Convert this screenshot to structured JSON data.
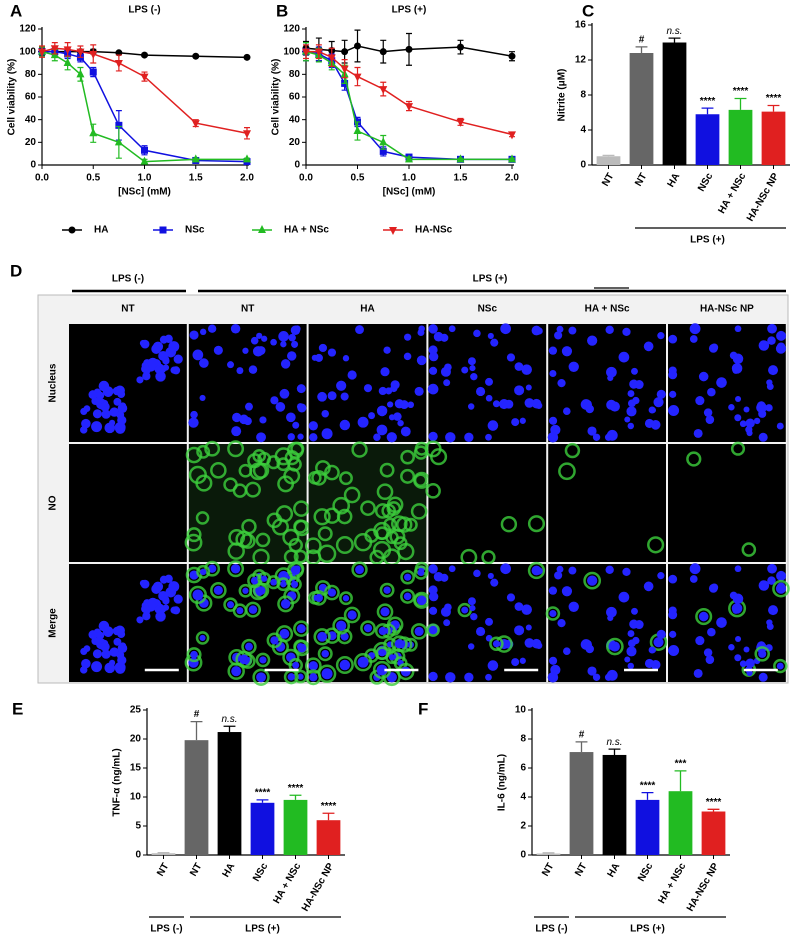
{
  "chart_data": [
    {
      "type": "line",
      "panel": "A",
      "title": "LPS (-)",
      "x_label": "[NSc] (mM)",
      "y_label": "Cell viability (%)",
      "x": [
        0,
        0.125,
        0.25,
        0.375,
        0.5,
        0.75,
        1,
        1.5,
        2
      ],
      "xlim": [
        0,
        2
      ],
      "xticks": [
        {
          "value": 0,
          "label": "0.0"
        },
        {
          "value": 0.5,
          "label": "0.5"
        },
        {
          "value": 1,
          "label": "1.0"
        },
        {
          "value": 1.5,
          "label": "1.5"
        },
        {
          "value": 2,
          "label": "2.0"
        }
      ],
      "ylim": [
        0,
        120
      ],
      "yticks": [
        0,
        20,
        40,
        60,
        80,
        100,
        120
      ],
      "series": [
        {
          "name": "HA",
          "color": "#000000",
          "marker": "circle",
          "values": [
            100,
            100,
            100,
            100,
            100,
            99,
            97,
            96,
            95
          ],
          "errors": [
            3,
            2,
            2,
            2,
            2,
            1,
            1,
            1,
            1
          ]
        },
        {
          "name": "NSc",
          "color": "#1010e0",
          "marker": "square",
          "values": [
            100,
            100,
            98,
            95,
            82,
            35,
            13,
            4,
            3
          ],
          "errors": [
            4,
            3,
            4,
            4,
            4,
            13,
            4,
            1,
            1
          ]
        },
        {
          "name": "HA + NSc",
          "color": "#22bb22",
          "marker": "triangle-up",
          "values": [
            100,
            97,
            90,
            80,
            28,
            20,
            3,
            5,
            5
          ],
          "errors": [
            4,
            5,
            6,
            6,
            8,
            14,
            2,
            1,
            1
          ]
        },
        {
          "name": "HA-NSc",
          "color": "#e02020",
          "marker": "triangle-down",
          "values": [
            100,
            103,
            102,
            100,
            98,
            90,
            78,
            37,
            28
          ],
          "errors": [
            5,
            5,
            6,
            5,
            8,
            7,
            4,
            3,
            5
          ]
        }
      ]
    },
    {
      "type": "line",
      "panel": "B",
      "title": "LPS (+)",
      "x_label": "[NSc] (mM)",
      "y_label": "Cell viability (%)",
      "x": [
        0,
        0.125,
        0.25,
        0.375,
        0.5,
        0.75,
        1,
        1.5,
        2
      ],
      "xlim": [
        0,
        2
      ],
      "xticks": [
        {
          "value": 0,
          "label": "0.0"
        },
        {
          "value": 0.5,
          "label": "0.5"
        },
        {
          "value": 1,
          "label": "1.0"
        },
        {
          "value": 1.5,
          "label": "1.5"
        },
        {
          "value": 2,
          "label": "2.0"
        }
      ],
      "ylim": [
        0,
        120
      ],
      "yticks": [
        0,
        20,
        40,
        60,
        80,
        100,
        120
      ],
      "series": [
        {
          "color": "#000000",
          "marker": "circle",
          "values": [
            103,
            102,
            101,
            100,
            105,
            100,
            102,
            104,
            96
          ],
          "errors": [
            6,
            10,
            8,
            10,
            14,
            10,
            14,
            6,
            4
          ]
        },
        {
          "color": "#1010e0",
          "marker": "square",
          "values": [
            100,
            98,
            92,
            72,
            38,
            12,
            7,
            5,
            5
          ],
          "errors": [
            8,
            6,
            6,
            6,
            4,
            4,
            2,
            1,
            1
          ]
        },
        {
          "color": "#22bb22",
          "marker": "triangle-up",
          "values": [
            100,
            97,
            90,
            80,
            30,
            20,
            5,
            5,
            5
          ],
          "errors": [
            8,
            6,
            6,
            8,
            8,
            6,
            2,
            1,
            1
          ]
        },
        {
          "color": "#e02020",
          "marker": "triangle-down",
          "values": [
            100,
            100,
            95,
            85,
            78,
            67,
            52,
            38,
            27
          ],
          "errors": [
            6,
            6,
            8,
            8,
            8,
            6,
            4,
            3,
            2
          ]
        }
      ]
    },
    {
      "type": "bar",
      "panel": "C",
      "y_label": "Nitrite (μM)",
      "categories": [
        "NT",
        "NT",
        "HA",
        "NSc",
        "HA + NSc",
        "HA-NSc NP"
      ],
      "values": [
        1.0,
        12.8,
        14.0,
        5.8,
        6.3,
        6.1
      ],
      "errors": [
        0.1,
        0.7,
        0.5,
        0.7,
        1.3,
        0.7
      ],
      "colors": [
        "#bbbbbb",
        "#666666",
        "#000000",
        "#1010e0",
        "#22bb22",
        "#e02020"
      ],
      "annotations": [
        "#",
        "n.s.",
        "****",
        "****",
        "****"
      ],
      "groups": [
        "LPS (-)",
        "LPS (+)"
      ],
      "ylim": [
        0,
        16
      ],
      "yticks": [
        0,
        4,
        8,
        12,
        16
      ]
    },
    {
      "type": "bar",
      "panel": "E",
      "y_label": "TNF-α (ng/mL)",
      "categories": [
        "NT",
        "NT",
        "HA",
        "NSc",
        "HA + NSc",
        "HA-NSc NP"
      ],
      "values": [
        0.3,
        19.8,
        21.2,
        9.0,
        9.5,
        6.0
      ],
      "errors": [
        0.1,
        3.2,
        1.0,
        0.5,
        0.8,
        1.2
      ],
      "colors": [
        "#bbbbbb",
        "#666666",
        "#000000",
        "#1010e0",
        "#22bb22",
        "#e02020"
      ],
      "annotations": [
        "#",
        "n.s.",
        "****",
        "****",
        "****"
      ],
      "groups": [
        "LPS (-)",
        "LPS (+)"
      ],
      "ylim": [
        0,
        25
      ],
      "yticks": [
        0,
        5,
        10,
        15,
        20,
        25
      ]
    },
    {
      "type": "bar",
      "panel": "F",
      "y_label": "IL-6 (ng/mL)",
      "categories": [
        "NT",
        "NT",
        "HA",
        "NSc",
        "HA + NSc",
        "HA-NSc NP"
      ],
      "values": [
        0.1,
        7.1,
        6.9,
        3.8,
        4.4,
        3.0
      ],
      "errors": [
        0.05,
        0.7,
        0.4,
        0.5,
        1.4,
        0.15
      ],
      "colors": [
        "#bbbbbb",
        "#666666",
        "#000000",
        "#1010e0",
        "#22bb22",
        "#e02020"
      ],
      "annotations": [
        "#",
        "n.s.",
        "****",
        "***",
        "****"
      ],
      "groups": [
        "LPS (-)",
        "LPS (+)"
      ],
      "ylim": [
        0,
        10
      ],
      "yticks": [
        0,
        2,
        4,
        6,
        8,
        10
      ]
    }
  ],
  "image_grid": {
    "panel": "D",
    "groups": [
      "LPS (-)",
      "LPS (+)"
    ],
    "columns": [
      "NT",
      "NT",
      "HA",
      "NSc",
      "HA + NSc",
      "HA-NSc NP"
    ],
    "rows": [
      "Nucleus",
      "NO",
      "Merge"
    ]
  }
}
